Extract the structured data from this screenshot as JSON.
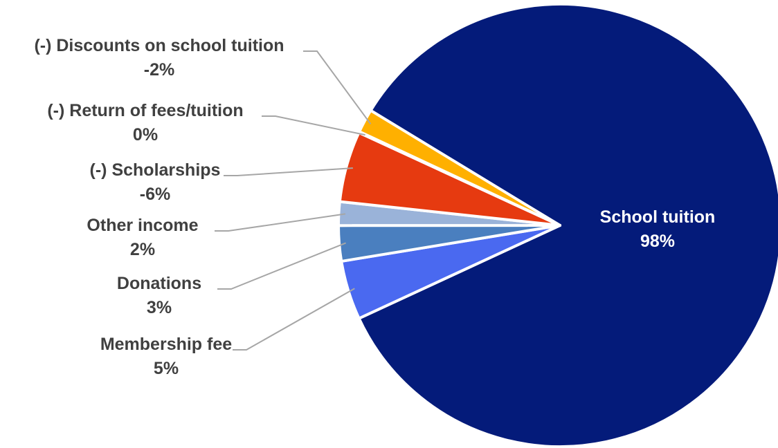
{
  "chart_data": {
    "type": "pie",
    "title": "",
    "colors": {
      "slice_border": "#ffffff",
      "label_dark": "#404040",
      "label_light": "#ffffff",
      "leader_line": "#a6a6a6"
    },
    "slices": [
      {
        "label": "School tuition",
        "value_label": "98%",
        "value": 98,
        "color": "#041b7a"
      },
      {
        "label": "Membership fee",
        "value_label": "5%",
        "value": 5,
        "color": "#4a69f0"
      },
      {
        "label": "Donations",
        "value_label": "3%",
        "value": 3,
        "color": "#4a7fbf"
      },
      {
        "label": "Other income",
        "value_label": "2%",
        "value": 2,
        "color": "#9ab3d9"
      },
      {
        "label": "(-) Scholarships",
        "value_label": "-6%",
        "value": -6,
        "color": "#e63a10"
      },
      {
        "label": "(-) Return of fees/tuition",
        "value_label": "0%",
        "value": 0,
        "color": "#f0e9d0"
      },
      {
        "label": "(-) Discounts on school tuition",
        "value_label": "-2%",
        "value": -2,
        "color": "#ffb000"
      }
    ]
  }
}
